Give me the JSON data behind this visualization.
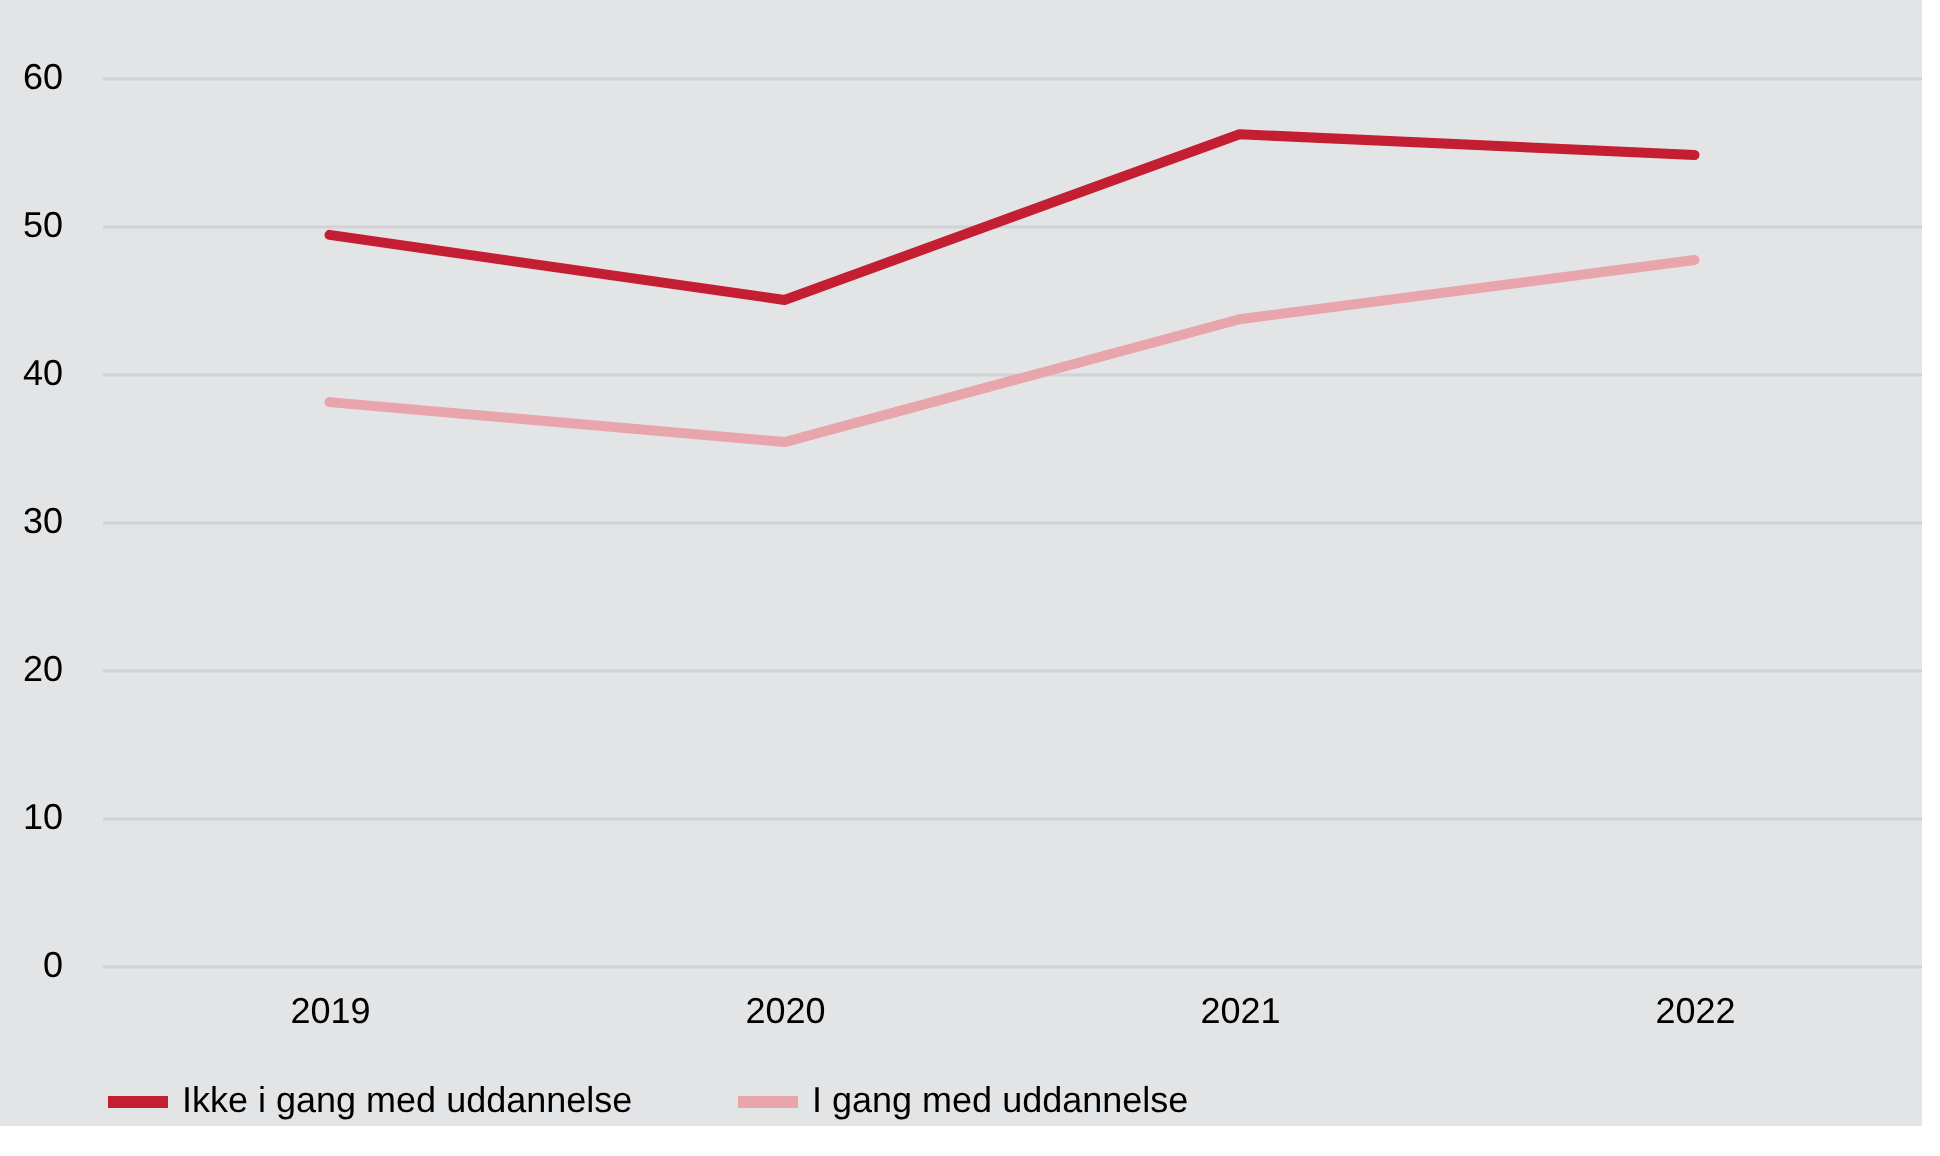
{
  "chart_data": {
    "type": "line",
    "categories": [
      "2019",
      "2020",
      "2021",
      "2022"
    ],
    "series": [
      {
        "name": "Ikke i gang med uddannelse",
        "color": "#c41e32",
        "values": [
          49.4,
          45.0,
          56.2,
          54.8
        ]
      },
      {
        "name": "I gang med uddannelse",
        "color": "#e8a5ab",
        "values": [
          38.1,
          35.4,
          43.7,
          47.7
        ]
      }
    ],
    "ylim": [
      0,
      60
    ],
    "yticks": [
      0,
      10,
      20,
      30,
      40,
      50,
      60
    ],
    "grid": "y",
    "legend": "bottom",
    "marker": "none",
    "line_style": "solid"
  }
}
